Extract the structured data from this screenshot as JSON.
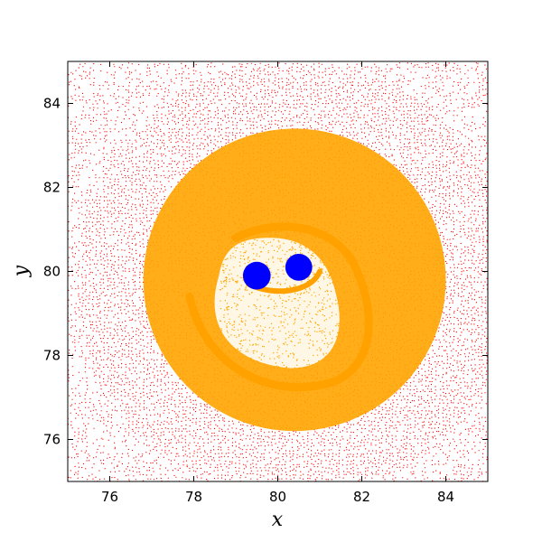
{
  "chart_data": {
    "type": "scatter",
    "xlabel": "x",
    "ylabel": "y",
    "xlim": [
      75,
      85
    ],
    "ylim": [
      75,
      85
    ],
    "x_ticks": [
      76,
      78,
      80,
      82,
      84
    ],
    "y_ticks": [
      76,
      78,
      80,
      82,
      84
    ],
    "grid": false,
    "legend": "none",
    "series": [
      {
        "color": "#ff0000",
        "description_region": {
          "type": "field",
          "extent": [
            75,
            85,
            75,
            85
          ]
        }
      },
      {
        "color": "#ffa500",
        "description_region": {
          "type": "disk",
          "center": [
            80.4,
            79.8
          ],
          "radius": 3.6
        }
      },
      {
        "color": "#0000ff",
        "blobs": [
          {
            "center": [
              79.5,
              79.9
            ],
            "radius": 0.33
          },
          {
            "center": [
              80.5,
              80.1
            ],
            "radius": 0.32
          }
        ]
      }
    ]
  }
}
